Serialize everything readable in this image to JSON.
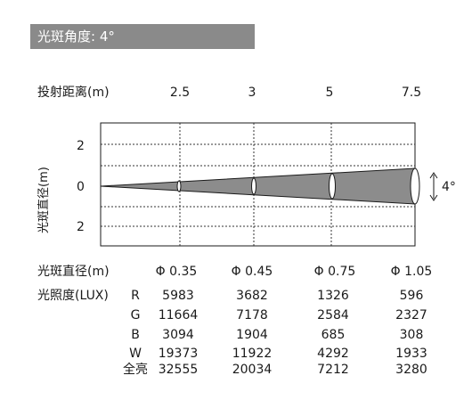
{
  "header": {
    "title": "光斑角度: 4°"
  },
  "distance": {
    "label": "投射距离(m)",
    "values": [
      "2.5",
      "3",
      "5",
      "7.5"
    ]
  },
  "diagram": {
    "y_axis_label": "光斑直径(m)",
    "y_ticks": [
      "2",
      "0",
      "2"
    ],
    "angle_label": "4°"
  },
  "diameter": {
    "label": "光斑直径(m)",
    "values": [
      "Φ 0.35",
      "Φ 0.45",
      "Φ 0.75",
      "Φ 1.05"
    ]
  },
  "illuminance": {
    "label": "光照度(LUX)",
    "rows": [
      {
        "channel": "R",
        "values": [
          "5983",
          "3682",
          "1326",
          "596"
        ]
      },
      {
        "channel": "G",
        "values": [
          "11664",
          "7178",
          "2584",
          "2327"
        ]
      },
      {
        "channel": "B",
        "values": [
          "3094",
          "1904",
          "685",
          "308"
        ]
      },
      {
        "channel": "W",
        "values": [
          "19373",
          "11922",
          "4292",
          "1933"
        ]
      },
      {
        "channel": "全亮",
        "values": [
          "32555",
          "20034",
          "7212",
          "3280"
        ]
      }
    ]
  },
  "colors": {
    "header_bg": "#8a8a8a",
    "beam_fill": "#8c8c8c",
    "beam_edge": "#1a1a1a"
  }
}
